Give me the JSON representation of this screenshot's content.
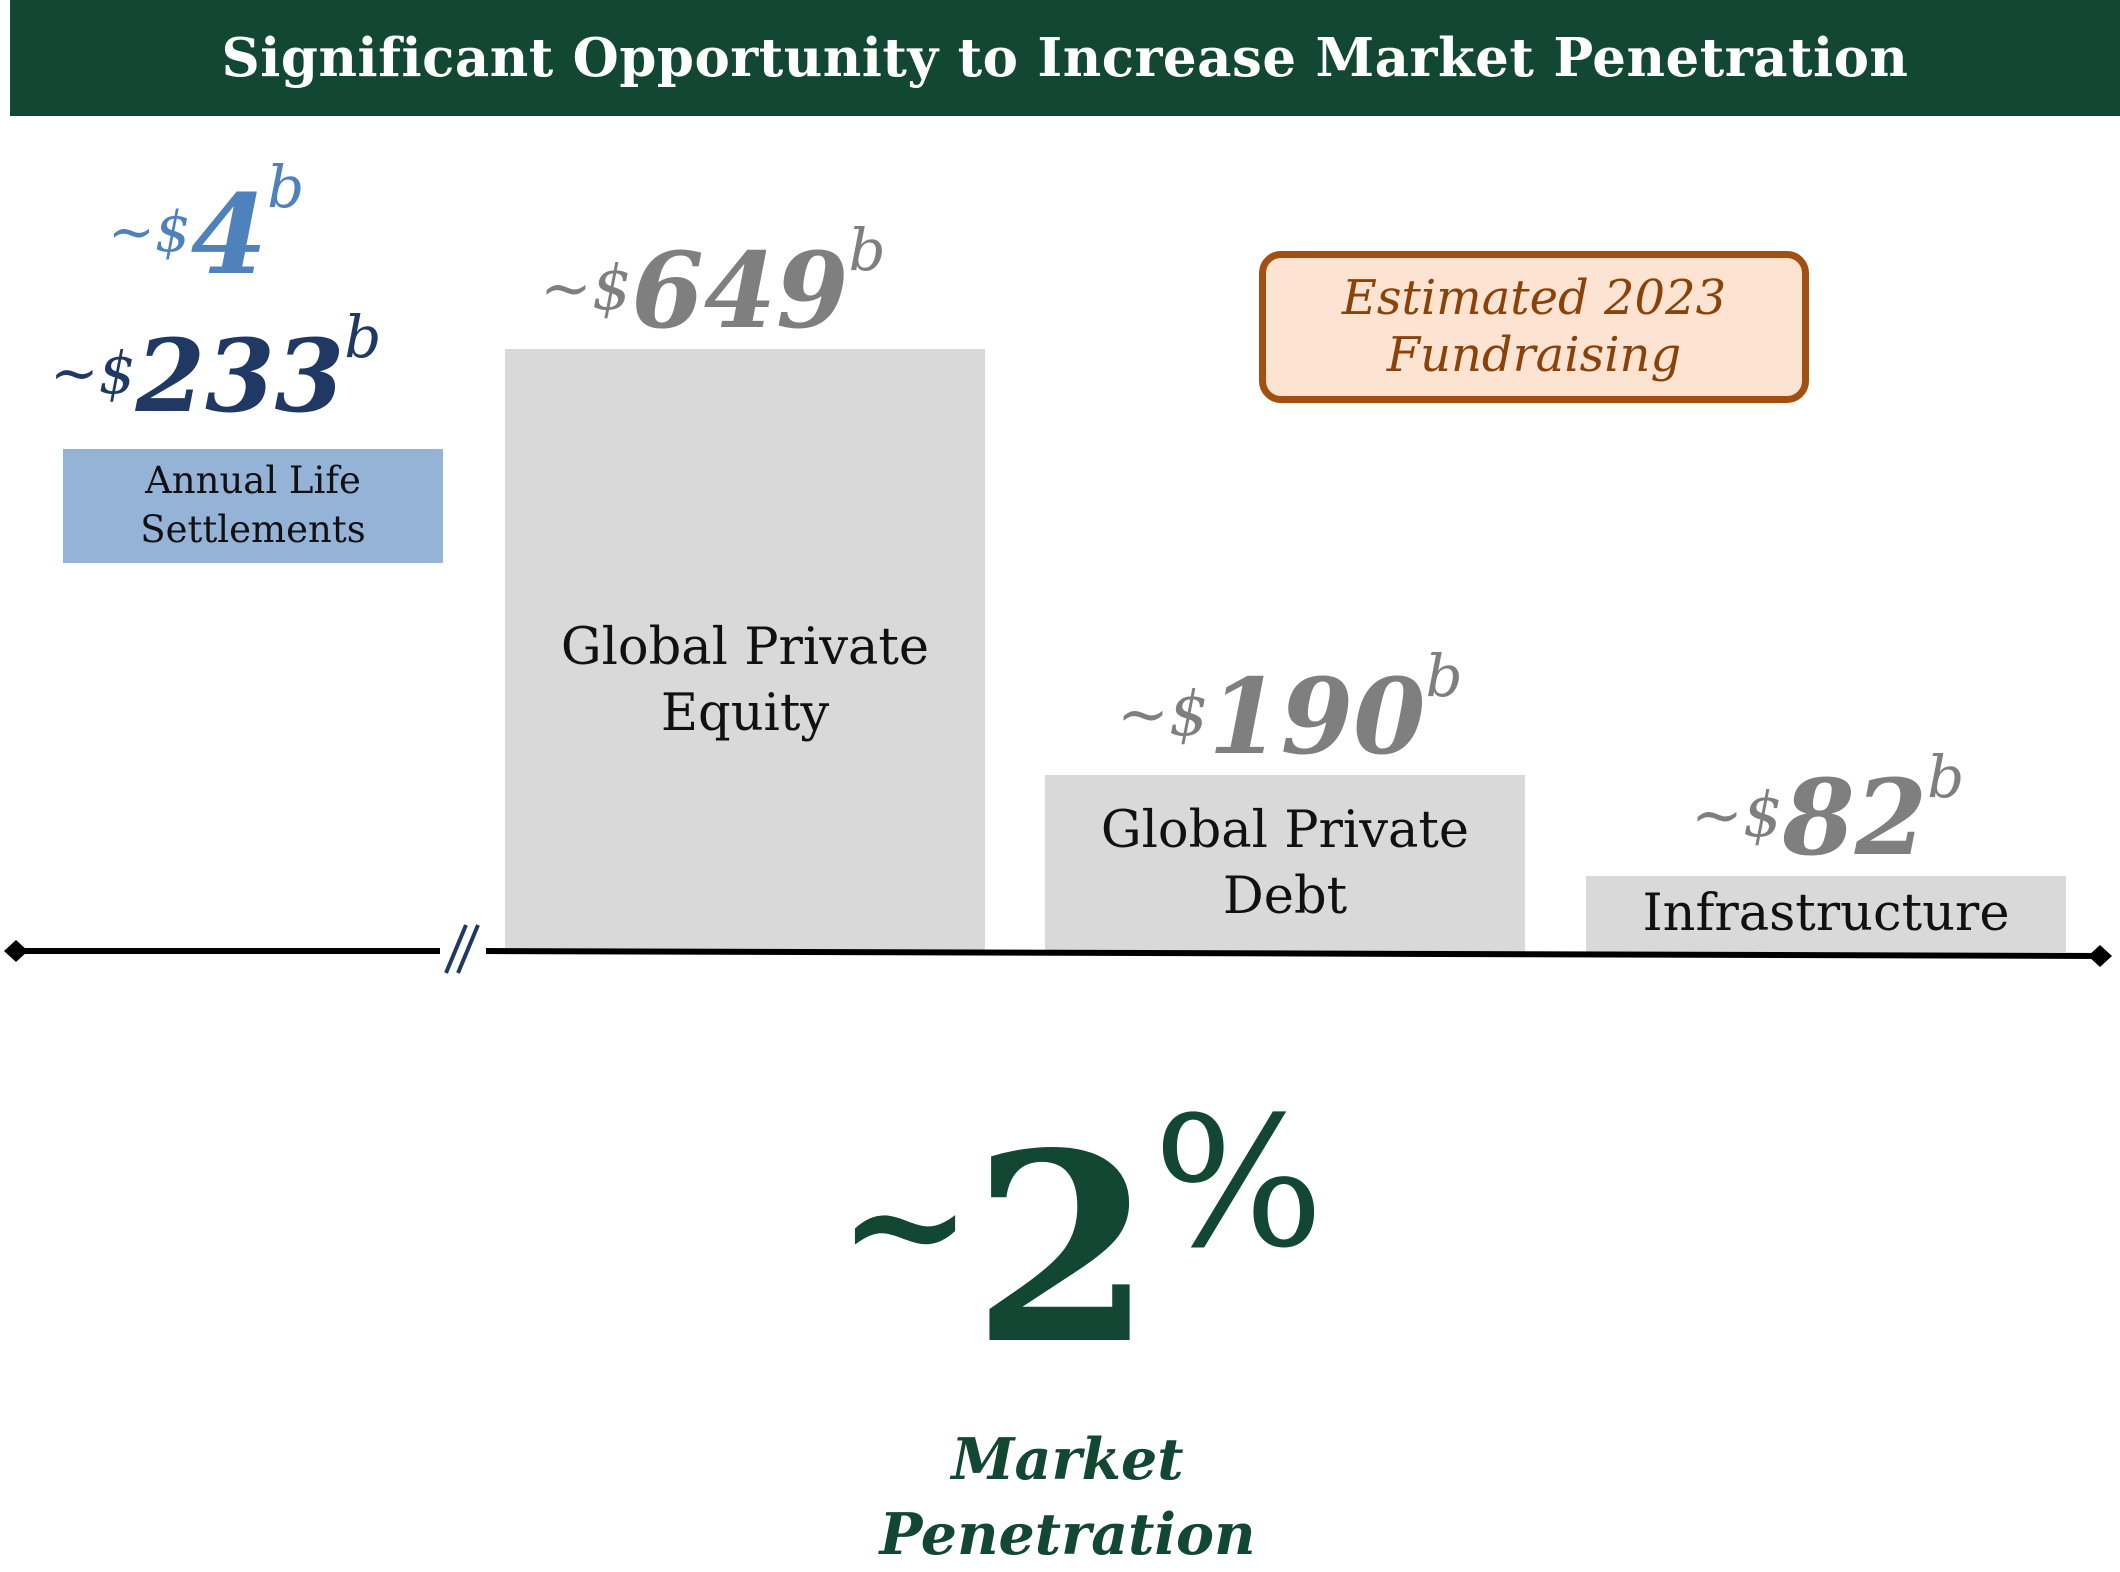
{
  "title": "Significant Opportunity to Increase Market Penetration",
  "colors": {
    "brand_green": "#124734",
    "bar_gray": "#d9d9d9",
    "value_gray": "#7f7f7f",
    "navy": "#1f3864",
    "steel_blue": "#4f81bd",
    "label_blue_box": "#95b3d7",
    "legend_border": "#a24f12",
    "legend_fill": "#fde4d2"
  },
  "life_settlements": {
    "top_value": {
      "prefix": "~$",
      "number": "4",
      "suffix": "b"
    },
    "bottom_value": {
      "prefix": "~$",
      "number": "233",
      "suffix": "b"
    },
    "label_line1": "Annual Life",
    "label_line2": "Settlements"
  },
  "legend": {
    "line1": "Estimated 2023",
    "line2": "Fundraising"
  },
  "chart_data": {
    "type": "bar",
    "categories": [
      "Global Private Equity",
      "Global Private Debt",
      "Infrastructure"
    ],
    "values": [
      649,
      190,
      82
    ],
    "value_labels": [
      {
        "prefix": "~$",
        "number": "649",
        "suffix": "b"
      },
      {
        "prefix": "~$",
        "number": "190",
        "suffix": "b"
      },
      {
        "prefix": "~$",
        "number": "82",
        "suffix": "b"
      }
    ],
    "category_lines": [
      [
        "Global Private",
        "Equity"
      ],
      [
        "Global Private",
        "Debt"
      ],
      [
        "Infrastructure"
      ]
    ],
    "ylim": [
      0,
      649
    ],
    "axis_break": true,
    "grid": false
  },
  "penetration": {
    "tilde": "~",
    "number": "2",
    "sign": "%",
    "label_line1": "Market",
    "label_line2": "Penetration"
  }
}
